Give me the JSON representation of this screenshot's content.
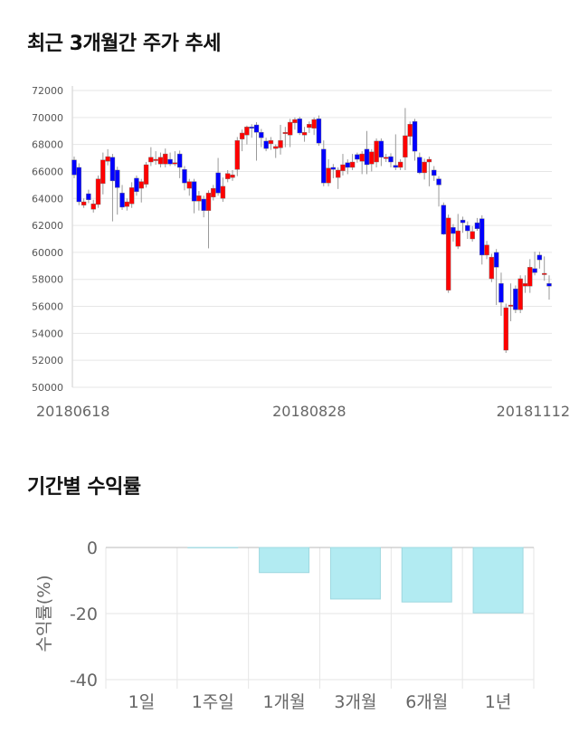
{
  "titles": {
    "price": "최근 3개월간 주가 추세",
    "returns": "기간별 수익률"
  },
  "colors": {
    "up": "#ff0000",
    "down": "#0000ff",
    "bar": "#b2ebf2",
    "bar_border": "#9ed8e0",
    "grid": "#e6e6e6"
  },
  "chart_data": [
    {
      "type": "candlestick",
      "title": "최근 3개월간 주가 추세",
      "ylim": [
        50000,
        72000
      ],
      "yticks": [
        "50000",
        "52000",
        "54000",
        "56000",
        "58000",
        "60000",
        "62000",
        "64000",
        "66000",
        "68000",
        "70000",
        "72000"
      ],
      "xtick_labels": [
        {
          "index": 0,
          "label": "20180618"
        },
        {
          "index": 49,
          "label": "20180828"
        },
        {
          "index": 99,
          "label": "20181112"
        }
      ],
      "grid": true,
      "ohlc": [
        [
          66850,
          67100,
          65500,
          65750
        ],
        [
          66300,
          66600,
          63500,
          63750
        ],
        [
          63500,
          64000,
          63300,
          63750
        ],
        [
          64350,
          64650,
          63650,
          63900
        ],
        [
          63200,
          63900,
          62950,
          63600
        ],
        [
          63550,
          65700,
          63300,
          65450
        ],
        [
          65100,
          67400,
          64300,
          66850
        ],
        [
          66750,
          67650,
          66450,
          67100
        ],
        [
          67050,
          67300,
          62300,
          65300
        ],
        [
          66100,
          66350,
          62800,
          64800
        ],
        [
          64400,
          65000,
          63150,
          63350
        ],
        [
          63400,
          64000,
          63100,
          63750
        ],
        [
          63600,
          65200,
          63300,
          64800
        ],
        [
          65500,
          65700,
          64200,
          64500
        ],
        [
          64750,
          65450,
          63700,
          65250
        ],
        [
          65050,
          66700,
          64800,
          66500
        ],
        [
          66700,
          67800,
          66400,
          67050
        ],
        [
          66900,
          67500,
          66500,
          66900
        ],
        [
          66550,
          67400,
          66300,
          67050
        ],
        [
          66550,
          67700,
          66300,
          67300
        ],
        [
          66900,
          67400,
          66400,
          66550
        ],
        [
          66650,
          67500,
          66400,
          66650
        ],
        [
          67300,
          67550,
          65500,
          66300
        ],
        [
          66150,
          66400,
          64600,
          65150
        ],
        [
          64750,
          65450,
          64200,
          65250
        ],
        [
          65250,
          65450,
          62900,
          63800
        ],
        [
          63800,
          64550,
          63100,
          64200
        ],
        [
          63950,
          64200,
          62600,
          63100
        ],
        [
          63100,
          64600,
          60300,
          64400
        ],
        [
          64100,
          65000,
          63850,
          64750
        ],
        [
          65900,
          67000,
          64200,
          64400
        ],
        [
          64000,
          65550,
          63750,
          64900
        ],
        [
          65450,
          66100,
          65200,
          65850
        ],
        [
          65550,
          66100,
          65300,
          65750
        ],
        [
          66150,
          68550,
          65650,
          68300
        ],
        [
          68400,
          69100,
          67500,
          68850
        ],
        [
          68700,
          69400,
          68000,
          69300
        ],
        [
          69300,
          69500,
          68500,
          69200
        ],
        [
          69450,
          69650,
          66800,
          68900
        ],
        [
          68900,
          69150,
          67800,
          68500
        ],
        [
          68250,
          68500,
          67500,
          67700
        ],
        [
          68050,
          68550,
          67600,
          68300
        ],
        [
          67700,
          68000,
          67000,
          67850
        ],
        [
          67750,
          69450,
          67250,
          68300
        ],
        [
          68900,
          69300,
          67800,
          68900
        ],
        [
          68700,
          69900,
          67800,
          69650
        ],
        [
          69600,
          70000,
          69100,
          69850
        ],
        [
          69900,
          70050,
          68700,
          68850
        ],
        [
          68700,
          69300,
          68200,
          68900
        ],
        [
          69250,
          69700,
          68850,
          69500
        ],
        [
          69200,
          70000,
          68700,
          69850
        ],
        [
          69900,
          70150,
          67900,
          68100
        ],
        [
          67650,
          68300,
          64900,
          65150
        ],
        [
          65150,
          66900,
          64900,
          66250
        ],
        [
          66300,
          66550,
          65500,
          66150
        ],
        [
          65550,
          66300,
          64700,
          66100
        ],
        [
          66050,
          67300,
          65700,
          66500
        ],
        [
          66650,
          66900,
          65800,
          66300
        ],
        [
          66300,
          67300,
          66100,
          66700
        ],
        [
          67250,
          67400,
          66650,
          66900
        ],
        [
          66750,
          67500,
          65800,
          67300
        ],
        [
          67650,
          69000,
          65800,
          66500
        ],
        [
          66550,
          67650,
          66000,
          67450
        ],
        [
          66700,
          68450,
          66300,
          68250
        ],
        [
          68250,
          68450,
          66400,
          67050
        ],
        [
          67050,
          67300,
          66700,
          67050
        ],
        [
          67100,
          67350,
          66300,
          66700
        ],
        [
          66450,
          68750,
          66100,
          66300
        ],
        [
          66300,
          66900,
          66100,
          66700
        ],
        [
          67050,
          70700,
          66100,
          68650
        ],
        [
          68600,
          69700,
          67950,
          69500
        ],
        [
          69700,
          69900,
          66800,
          67500
        ],
        [
          67050,
          67400,
          65800,
          65900
        ],
        [
          65900,
          66950,
          65400,
          66700
        ],
        [
          66700,
          67100,
          64900,
          66900
        ],
        [
          66100,
          66400,
          65300,
          65700
        ],
        [
          65450,
          65650,
          63400,
          65000
        ],
        [
          63500,
          63700,
          61300,
          61350
        ],
        [
          57200,
          62800,
          57000,
          62550
        ],
        [
          61850,
          62100,
          60800,
          61400
        ],
        [
          60450,
          62850,
          60250,
          61600
        ],
        [
          62400,
          62650,
          61450,
          62200
        ],
        [
          62000,
          62300,
          61000,
          61600
        ],
        [
          61000,
          61950,
          60800,
          61550
        ],
        [
          62200,
          62550,
          61600,
          61750
        ],
        [
          62500,
          62750,
          59100,
          59800
        ],
        [
          59800,
          60850,
          59500,
          60550
        ],
        [
          58050,
          59900,
          57800,
          59650
        ],
        [
          60000,
          60250,
          56100,
          58900
        ],
        [
          57700,
          58500,
          55300,
          56300
        ],
        [
          52750,
          56200,
          52550,
          55900
        ],
        [
          56100,
          57700,
          54900,
          56100
        ],
        [
          57300,
          57550,
          55500,
          55750
        ],
        [
          55750,
          58300,
          55500,
          58050
        ],
        [
          57500,
          58300,
          57000,
          57700
        ],
        [
          57500,
          59500,
          57000,
          58900
        ],
        [
          58800,
          60050,
          58300,
          58500
        ],
        [
          59800,
          60050,
          58800,
          59450
        ],
        [
          58450,
          59700,
          57900,
          58450
        ],
        [
          57700,
          58300,
          56500,
          57500
        ]
      ]
    },
    {
      "type": "bar",
      "title": "기간별 수익률",
      "ylabel": "수익률(%)",
      "ylim": [
        -40,
        0
      ],
      "yticks": [
        "0",
        "-20",
        "-40"
      ],
      "categories": [
        "1일",
        "1주일",
        "1개월",
        "3개월",
        "6개월",
        "1년"
      ],
      "values": [
        0,
        -0.1,
        -7.6,
        -15.6,
        -16.5,
        -19.8
      ],
      "grid": true
    }
  ]
}
